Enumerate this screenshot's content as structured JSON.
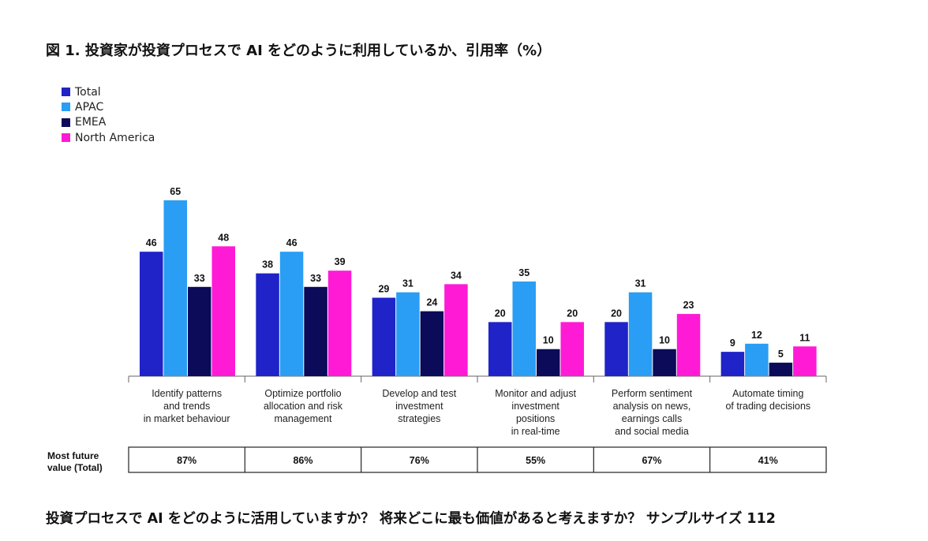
{
  "title": "図 1. 投資家が投資プロセスで AI をどのように利用しているか、引用率（%）",
  "footer": "投資プロセスで AI をどのように活用していますか？ 将来どこに最も価値があると考えますか？ サンプルサイズ 112",
  "colors": {
    "Total": "#1f23c8",
    "APAC": "#2a9df4",
    "EMEA": "#0b0b5a",
    "North America": "#ff1ad6"
  },
  "chart_data": {
    "type": "bar",
    "title": "図 1. 投資家が投資プロセスで AI をどのように利用しているか、引用率（%）",
    "xlabel": "",
    "ylabel": "",
    "ylim": [
      0,
      70
    ],
    "legend_position": "top-left",
    "categories": [
      [
        "Identify patterns",
        "and trends",
        "in market behaviour"
      ],
      [
        "Optimize portfolio",
        "allocation and risk",
        "management"
      ],
      [
        "Develop and test",
        "investment",
        "strategies"
      ],
      [
        "Monitor and adjust",
        "investment",
        "positions",
        "in real-time"
      ],
      [
        "Perform sentiment",
        "analysis on news,",
        "earnings calls",
        "and social media"
      ],
      [
        "Automate timing",
        "of trading decisions"
      ]
    ],
    "series": [
      {
        "name": "Total",
        "values": [
          46,
          38,
          29,
          20,
          20,
          9
        ]
      },
      {
        "name": "APAC",
        "values": [
          65,
          46,
          31,
          35,
          31,
          12
        ]
      },
      {
        "name": "EMEA",
        "values": [
          33,
          33,
          24,
          10,
          10,
          5
        ]
      },
      {
        "name": "North America",
        "values": [
          48,
          39,
          34,
          20,
          23,
          11
        ]
      }
    ],
    "table": {
      "row_label": [
        "Most future",
        "value (Total)"
      ],
      "values": [
        "87%",
        "86%",
        "76%",
        "55%",
        "67%",
        "41%"
      ]
    }
  }
}
